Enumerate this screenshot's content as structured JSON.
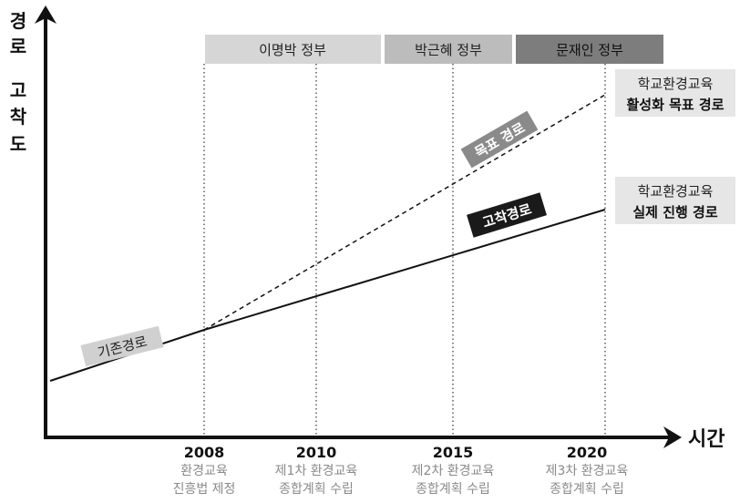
{
  "y_axis_label": [
    "경",
    "로",
    "",
    "고",
    "착",
    "도"
  ],
  "x_axis_label": "시간",
  "eras": [
    {
      "label": "이명박 정부"
    },
    {
      "label": "박근혜 정부"
    },
    {
      "label": "문재인 정부"
    }
  ],
  "years": [
    {
      "year": "2008",
      "line1": "환경교육",
      "line2": "진흥법 제정"
    },
    {
      "year": "2010",
      "line1": "제1차 환경교육",
      "line2": "종합계획 수립"
    },
    {
      "year": "2015",
      "line1": "제2차 환경교육",
      "line2": "종합계획 수립"
    },
    {
      "year": "2020",
      "line1": "제3차 환경교육",
      "line2": "종합계획 수립"
    }
  ],
  "path_labels": {
    "existing": "기존경로",
    "target": "목표 경로",
    "locked": "고착경로"
  },
  "right_labels": {
    "target_line1": "학교환경교육",
    "target_line2": "활성화 목표 경로",
    "actual_line1": "학교환경교육",
    "actual_line2": "실제 진행 경로"
  },
  "colors": {
    "era1": "#d6d6d6",
    "era2": "#bcbcbc",
    "era3": "#7d7d7d",
    "target_tag": "#8a8a8a",
    "locked_tag": "#1a1a1a",
    "existing_tag": "#d0d0d0",
    "year_caption": "#8a8a8a"
  }
}
